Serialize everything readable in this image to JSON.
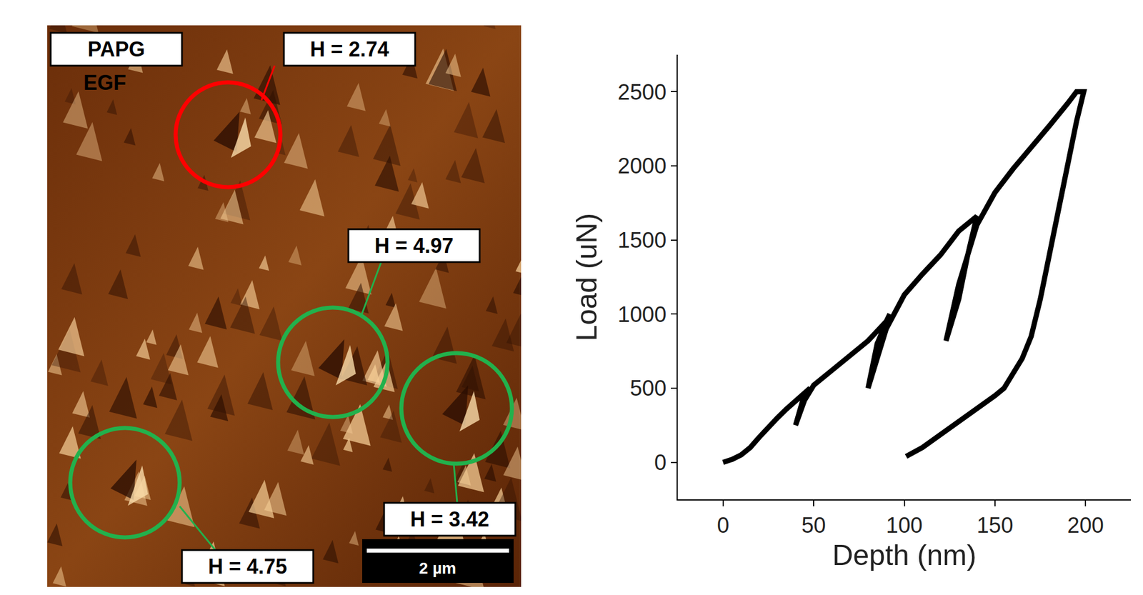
{
  "chart_data": {
    "type": "line",
    "x_label": "Depth (nm)",
    "y_label": "Load (uN)",
    "x": [
      0,
      5,
      10,
      15,
      20,
      25,
      30,
      35,
      40,
      45,
      48,
      44,
      40,
      45,
      50,
      60,
      70,
      80,
      90,
      92,
      85,
      80,
      90,
      100,
      110,
      120,
      130,
      140,
      135,
      130,
      123,
      130,
      140,
      150,
      160,
      170,
      180,
      190,
      195,
      199,
      195,
      190,
      185,
      180,
      175,
      170,
      165,
      160,
      155,
      150,
      140,
      130,
      120,
      110,
      101
    ],
    "values": [
      0,
      20,
      50,
      100,
      170,
      240,
      300,
      360,
      410,
      470,
      500,
      420,
      250,
      420,
      520,
      620,
      720,
      820,
      950,
      1000,
      800,
      500,
      900,
      1130,
      1270,
      1400,
      1560,
      1660,
      1400,
      1100,
      820,
      1200,
      1600,
      1820,
      1980,
      2120,
      2270,
      2420,
      2500,
      2500,
      2300,
      2000,
      1700,
      1400,
      1100,
      850,
      700,
      600,
      500,
      450,
      360,
      270,
      180,
      100,
      40
    ],
    "color": "#000000",
    "xlim": [
      -25,
      225
    ],
    "ylim": [
      -250,
      2750
    ],
    "xticks": [
      0,
      50,
      100,
      150,
      200
    ],
    "yticks": [
      0,
      500,
      1000,
      1500,
      2000,
      2500
    ],
    "grid": false
  },
  "afm_image": {
    "sample_label": "PAPG",
    "sample_sublabel": "EGF",
    "scale_bar": "2 µm",
    "indents": [
      {
        "label": "H = 2.74",
        "color": "#ff0000"
      },
      {
        "label": "H = 4.97",
        "color": "#22b14c"
      },
      {
        "label": "H = 3.42",
        "color": "#22b14c"
      },
      {
        "label": "H = 4.75",
        "color": "#22b14c"
      }
    ]
  }
}
